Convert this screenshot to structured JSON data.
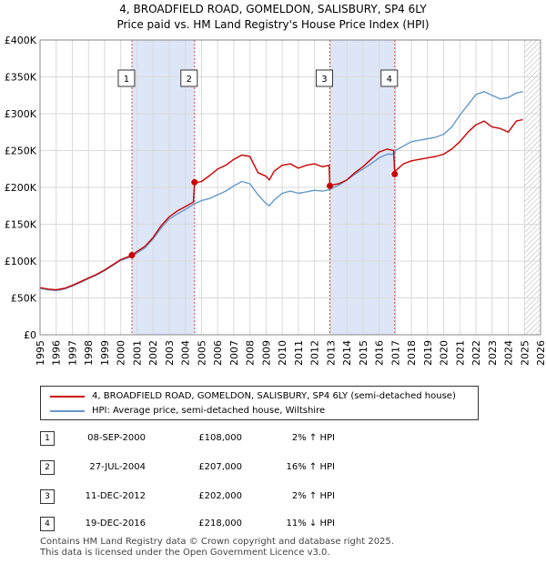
{
  "title_line1": "4, BROADFIELD ROAD, GOMELDON, SALISBURY, SP4 6LY",
  "title_line2": "Price paid vs. HM Land Registry's House Price Index (HPI)",
  "chart_data": {
    "type": "line",
    "xlim": [
      1995,
      2026
    ],
    "ylim": [
      0,
      400000
    ],
    "y_ticks": [
      0,
      50000,
      100000,
      150000,
      200000,
      250000,
      300000,
      350000,
      400000
    ],
    "y_tick_labels": [
      "£0",
      "£50K",
      "£100K",
      "£150K",
      "£200K",
      "£250K",
      "£300K",
      "£350K",
      "£400K"
    ],
    "x_ticks": [
      1995,
      1996,
      1997,
      1998,
      1999,
      2000,
      2001,
      2002,
      2003,
      2004,
      2005,
      2006,
      2007,
      2008,
      2009,
      2010,
      2011,
      2012,
      2013,
      2014,
      2015,
      2016,
      2017,
      2018,
      2019,
      2020,
      2021,
      2022,
      2023,
      2024,
      2025,
      2026
    ],
    "x_tick_labels": [
      "1995",
      "1996",
      "1997",
      "1998",
      "1999",
      "2000",
      "2001",
      "2002",
      "2003",
      "2004",
      "2005",
      "2006",
      "2007",
      "2008",
      "2009",
      "2010",
      "2011",
      "2012",
      "2013",
      "2014",
      "2015",
      "2016",
      "2017",
      "2018",
      "2019",
      "2020",
      "2021",
      "2022",
      "2023",
      "2024",
      "2025",
      "2026"
    ],
    "grid": true,
    "shaded_periods": [
      [
        2000.69,
        2004.57
      ],
      [
        2012.95,
        2016.97
      ]
    ],
    "hatched_after": 2025.0,
    "series": [
      {
        "name": "4, BROADFIELD ROAD, GOMELDON, SALISBURY, SP4 6LY (semi-detached house)",
        "color": "#cc0000",
        "x": [
          1995.0,
          1995.5,
          1996.0,
          1996.5,
          1997.0,
          1997.5,
          1998.0,
          1998.5,
          1999.0,
          1999.5,
          2000.0,
          2000.69,
          2001.0,
          2001.5,
          2002.0,
          2002.5,
          2003.0,
          2003.5,
          2004.0,
          2004.5,
          2004.57,
          2004.6,
          2005.0,
          2005.5,
          2006.0,
          2006.5,
          2007.0,
          2007.5,
          2008.0,
          2008.5,
          2009.0,
          2009.2,
          2009.5,
          2010.0,
          2010.5,
          2011.0,
          2011.5,
          2012.0,
          2012.5,
          2012.9,
          2012.95,
          2013.0,
          2013.5,
          2014.0,
          2014.5,
          2015.0,
          2015.5,
          2016.0,
          2016.5,
          2016.9,
          2016.97,
          2017.0,
          2017.5,
          2018.0,
          2018.5,
          2019.0,
          2019.5,
          2020.0,
          2020.5,
          2021.0,
          2021.5,
          2022.0,
          2022.5,
          2023.0,
          2023.5,
          2024.0,
          2024.5,
          2024.9
        ],
        "y": [
          64000,
          62000,
          61000,
          63000,
          67000,
          72000,
          77000,
          82000,
          88000,
          95000,
          102000,
          108000,
          113000,
          120000,
          132000,
          148000,
          160000,
          168000,
          174000,
          180000,
          207000,
          206000,
          208000,
          216000,
          225000,
          230000,
          238000,
          244000,
          242000,
          220000,
          215000,
          210000,
          222000,
          230000,
          232000,
          226000,
          230000,
          232000,
          228000,
          230000,
          202000,
          203000,
          205000,
          210000,
          220000,
          228000,
          238000,
          248000,
          252000,
          250000,
          218000,
          222000,
          232000,
          236000,
          238000,
          240000,
          242000,
          245000,
          252000,
          262000,
          275000,
          285000,
          290000,
          282000,
          280000,
          275000,
          290000,
          292000
        ]
      },
      {
        "name": "HPI: Average price, semi-detached house, Wiltshire",
        "color": "#6699cc",
        "x": [
          1995.0,
          1995.5,
          1996.0,
          1996.5,
          1997.0,
          1997.5,
          1998.0,
          1998.5,
          1999.0,
          1999.5,
          2000.0,
          2000.69,
          2001.0,
          2001.5,
          2002.0,
          2002.5,
          2003.0,
          2003.5,
          2004.0,
          2004.57,
          2005.0,
          2005.5,
          2006.0,
          2006.5,
          2007.0,
          2007.5,
          2008.0,
          2008.5,
          2009.0,
          2009.2,
          2009.5,
          2010.0,
          2010.5,
          2011.0,
          2011.5,
          2012.0,
          2012.5,
          2012.95,
          2013.0,
          2013.5,
          2014.0,
          2014.5,
          2015.0,
          2015.5,
          2016.0,
          2016.5,
          2016.97,
          2017.0,
          2017.5,
          2018.0,
          2018.5,
          2019.0,
          2019.5,
          2020.0,
          2020.5,
          2021.0,
          2021.5,
          2022.0,
          2022.5,
          2023.0,
          2023.5,
          2024.0,
          2024.5,
          2024.9
        ],
        "y": [
          63000,
          61000,
          60000,
          62000,
          66000,
          71000,
          76000,
          81000,
          87000,
          94000,
          101000,
          106000,
          111000,
          118000,
          130000,
          145000,
          157000,
          164000,
          170000,
          178000,
          182000,
          185000,
          190000,
          195000,
          202000,
          208000,
          205000,
          190000,
          178000,
          175000,
          183000,
          192000,
          195000,
          192000,
          194000,
          196000,
          195000,
          197000,
          198000,
          203000,
          210000,
          218000,
          225000,
          232000,
          240000,
          245000,
          245000,
          250000,
          256000,
          262000,
          264000,
          266000,
          268000,
          272000,
          282000,
          298000,
          312000,
          326000,
          330000,
          325000,
          320000,
          322000,
          328000,
          330000
        ]
      }
    ],
    "sale_points": [
      {
        "label": "1",
        "x": 2000.69,
        "y": 108000
      },
      {
        "label": "2",
        "x": 2004.57,
        "y": 207000
      },
      {
        "label": "3",
        "x": 2012.95,
        "y": 202000
      },
      {
        "label": "4",
        "x": 2016.97,
        "y": 218000
      }
    ]
  },
  "legend": {
    "red_label": "4, BROADFIELD ROAD, GOMELDON, SALISBURY, SP4 6LY (semi-detached house)",
    "blue_label": "HPI: Average price, semi-detached house, Wiltshire"
  },
  "transactions": [
    {
      "num": "1",
      "date": "08-SEP-2000",
      "price": "£108,000",
      "hpi": "2% ↑ HPI"
    },
    {
      "num": "2",
      "date": "27-JUL-2004",
      "price": "£207,000",
      "hpi": "16% ↑ HPI"
    },
    {
      "num": "3",
      "date": "11-DEC-2012",
      "price": "£202,000",
      "hpi": "2% ↑ HPI"
    },
    {
      "num": "4",
      "date": "19-DEC-2016",
      "price": "£218,000",
      "hpi": "11% ↓ HPI"
    }
  ],
  "footer": {
    "line1": "Contains HM Land Registry data © Crown copyright and database right 2025.",
    "line2": "This data is licensed under the Open Government Licence v3.0."
  },
  "colors": {
    "red": "#cc0000",
    "blue": "#6699cc",
    "shade": "#dde6f7",
    "grid": "#d9d9d9"
  }
}
